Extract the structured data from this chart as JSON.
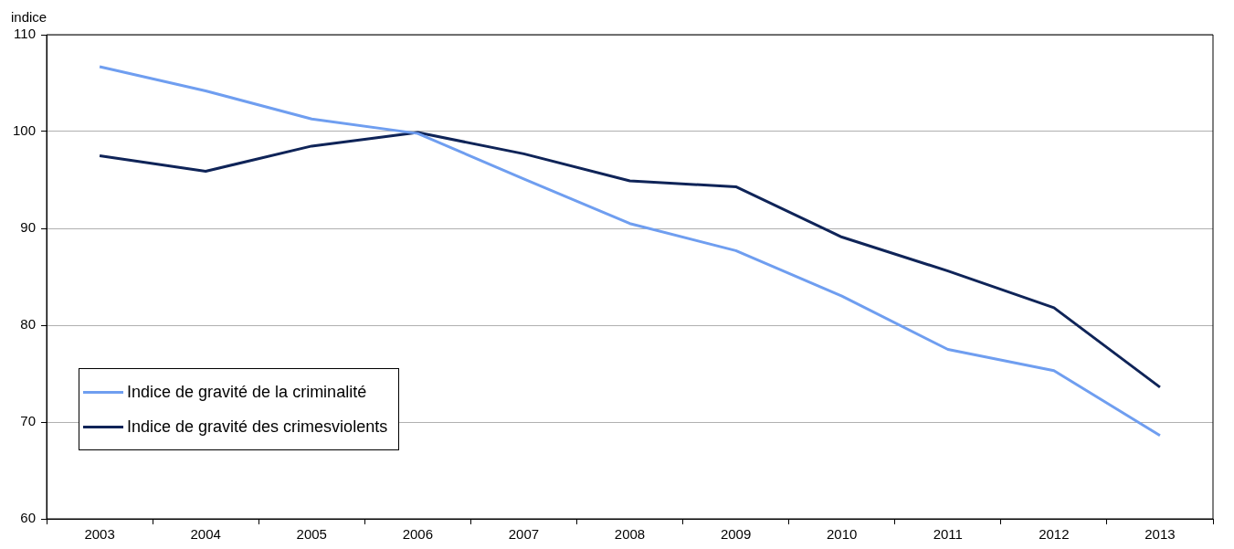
{
  "chart_data": {
    "type": "line",
    "ylabel": "indice",
    "categories": [
      "2003",
      "2004",
      "2005",
      "2006",
      "2007",
      "2008",
      "2009",
      "2010",
      "2011",
      "2012",
      "2013"
    ],
    "series": [
      {
        "name": "Indice de gravité de la criminalité",
        "color": "#6f9ef0",
        "values": [
          106.7,
          104.2,
          101.3,
          99.8,
          95.1,
          90.5,
          87.7,
          83.0,
          77.5,
          75.3,
          68.6
        ]
      },
      {
        "name": "Indice de gravité des crimesviolents",
        "color": "#0f2458",
        "values": [
          97.5,
          95.9,
          98.5,
          99.9,
          97.7,
          94.9,
          94.3,
          89.1,
          85.6,
          81.8,
          73.6
        ]
      }
    ],
    "ylim": [
      60,
      110
    ],
    "yticks": [
      60,
      70,
      80,
      90,
      100,
      110
    ],
    "grid": "y",
    "legend": "bottom left",
    "marker": "none",
    "line_style": "solid"
  }
}
